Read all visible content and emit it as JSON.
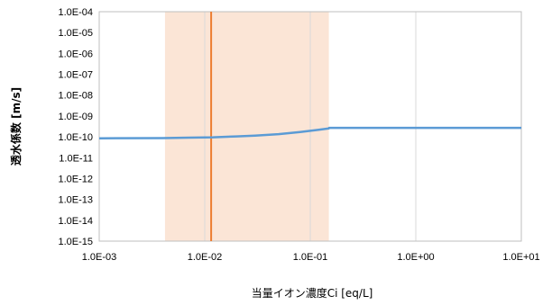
{
  "chart_data": {
    "type": "line",
    "title": "",
    "xlabel": "当量イオン濃度Ci [eq/L]",
    "ylabel": "透水係数 [m/s]",
    "x_scale": "log",
    "y_scale": "log",
    "xlim": [
      0.001,
      10
    ],
    "ylim": [
      1e-15,
      0.0001
    ],
    "grid": "vertical major gridlines at each decade; no horizontal gridlines",
    "legend": "none",
    "x_ticks": [
      "1.0E-03",
      "1.0E-02",
      "1.0E-01",
      "1.0E+00",
      "1.0E+01"
    ],
    "y_ticks": [
      "1.0E-15",
      "1.0E-14",
      "1.0E-13",
      "1.0E-12",
      "1.0E-11",
      "1.0E-10",
      "1.0E-09",
      "1.0E-08",
      "1.0E-07",
      "1.0E-06",
      "1.0E-05",
      "1.0E-04"
    ],
    "series": [
      {
        "color": "#5b9bd5",
        "x": [
          0.001,
          0.004,
          0.007,
          0.012,
          0.02,
          0.03,
          0.05,
          0.08,
          0.12,
          0.15,
          0.151,
          1,
          10
        ],
        "y": [
          8.5e-11,
          8.7e-11,
          9.1e-11,
          9.5e-11,
          1.05e-10,
          1.15e-10,
          1.35e-10,
          1.7e-10,
          2.2e-10,
          2.55e-10,
          2.7e-10,
          2.7e-10,
          2.7e-10
        ]
      }
    ],
    "shaded_region": {
      "x_range": [
        0.0042,
        0.15
      ],
      "color": "#fbe5d6"
    },
    "vertical_line": {
      "x": 0.0115,
      "color": "#ed7d31"
    },
    "colors": {
      "series": "#5b9bd5",
      "shaded_region": "#fbe5d6",
      "vertical_line": "#ed7d31",
      "gridline": "#d9d9d9",
      "plot_border": "#bfbfbf"
    }
  }
}
